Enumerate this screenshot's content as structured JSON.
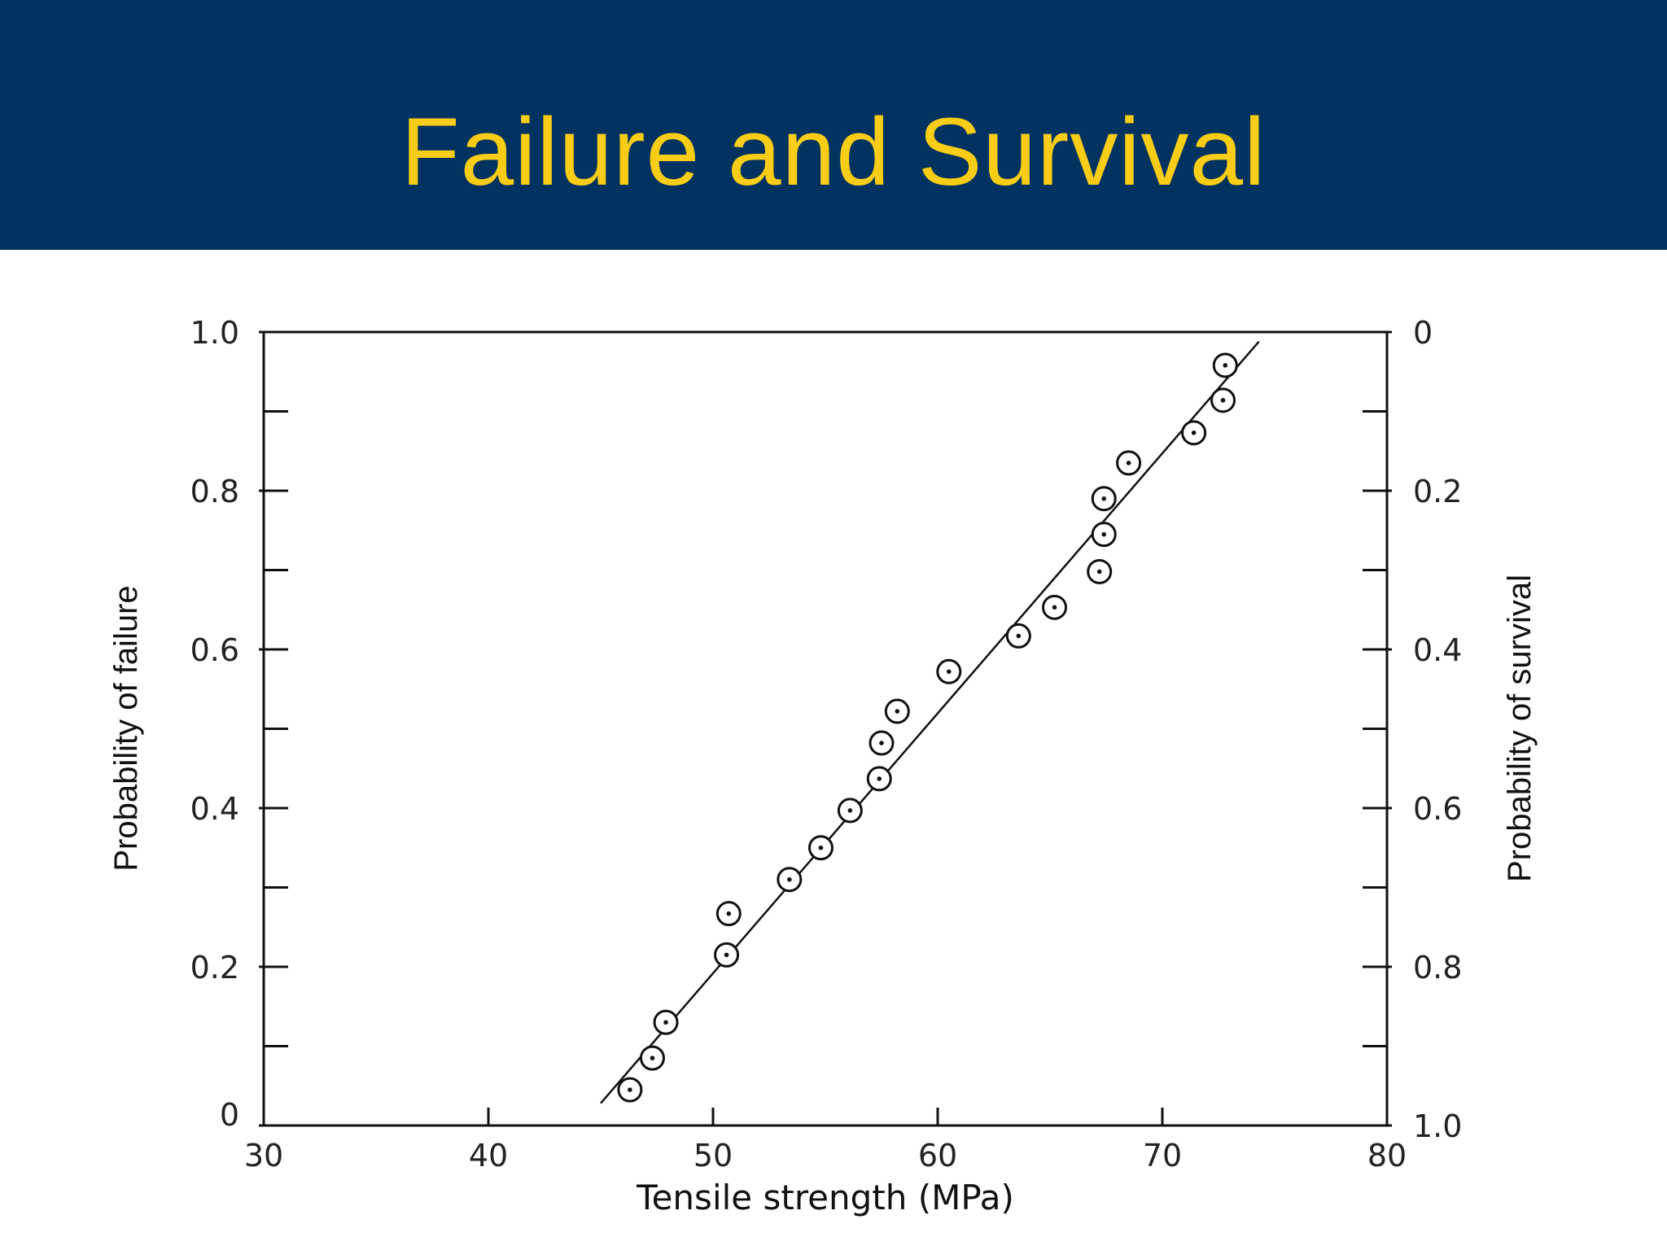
{
  "slide": {
    "title": "Failure and Survival"
  },
  "colors": {
    "header_bg": "#023260",
    "title": "#f9cc16",
    "plot": "#111111"
  },
  "chart_data": {
    "type": "scatter",
    "title": "",
    "xlabel": "Tensile strength (MPa)",
    "ylabel": "Probability of failure",
    "y2label": "Probability of survival",
    "xlim": [
      30,
      80
    ],
    "ylim": [
      0,
      1.0
    ],
    "grid": false,
    "marker": "circle-with-center-dot",
    "x_ticks": [
      "30",
      "40",
      "50",
      "60",
      "70",
      "80"
    ],
    "y_ticks": [
      "0",
      "0.2",
      "0.4",
      "0.6",
      "0.8",
      "1.0"
    ],
    "y2_ticks": [
      "1.0",
      "0.8",
      "0.6",
      "0.4",
      "0.2",
      "0"
    ],
    "minor_y_ticks": [
      0.1,
      0.3,
      0.5,
      0.7,
      0.9
    ],
    "series": [
      {
        "type": "scatter",
        "x": [
          46.3,
          47.3,
          47.9,
          50.6,
          50.7,
          53.4,
          54.8,
          56.1,
          57.4,
          57.5,
          58.2,
          60.5,
          63.6,
          65.2,
          67.2,
          67.4,
          67.4,
          68.5,
          71.4,
          72.7,
          72.8
        ],
        "y": [
          0.045,
          0.085,
          0.13,
          0.215,
          0.267,
          0.31,
          0.35,
          0.397,
          0.437,
          0.482,
          0.522,
          0.572,
          0.617,
          0.653,
          0.698,
          0.745,
          0.79,
          0.835,
          0.873,
          0.914,
          0.958
        ]
      },
      {
        "type": "line",
        "x": [
          45.0,
          74.3
        ],
        "y": [
          0.028,
          0.988
        ]
      }
    ]
  }
}
